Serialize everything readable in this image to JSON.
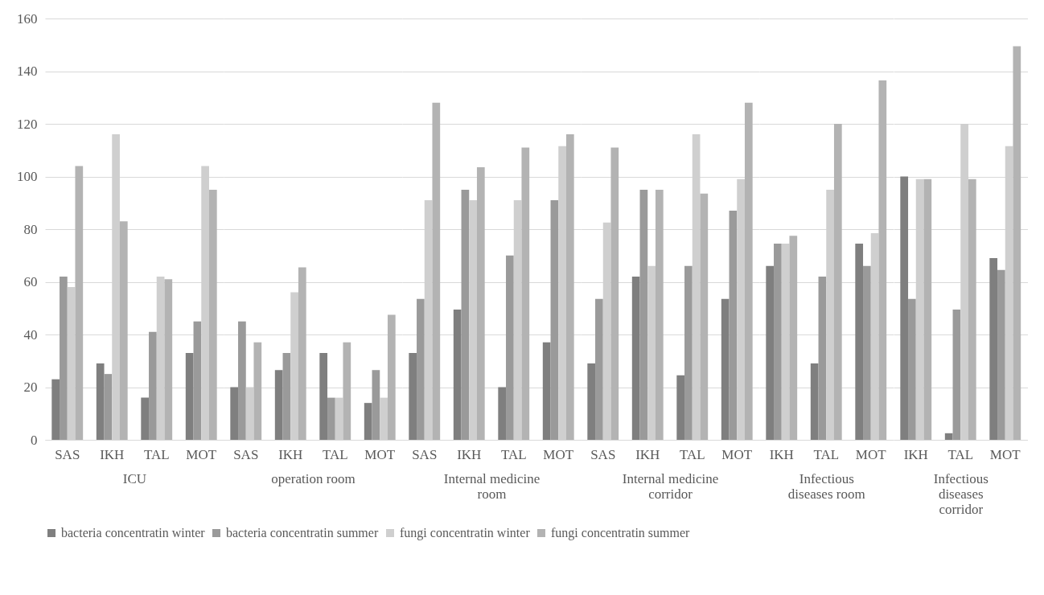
{
  "chart_data": [
    {
      "type": "bar",
      "xlabel": "ICU",
      "categories": [
        "SAS",
        "IKH",
        "TAL",
        "MOT"
      ],
      "ylim": [
        0,
        160
      ],
      "yticks": [
        0,
        20,
        40,
        60,
        80,
        100,
        120,
        140,
        160
      ],
      "grid": "y",
      "legend": "bottom",
      "series": [
        {
          "name": "bacteria concentratin winter",
          "color": "#7f7f7f",
          "values": [
            23,
            29,
            16,
            33
          ]
        },
        {
          "name": "bacteria concentratin summer",
          "color": "#9a9a9a",
          "values": [
            62,
            25,
            41,
            45
          ]
        },
        {
          "name": "fungi concentratin winter",
          "color": "#cfcfcf",
          "values": [
            58,
            116,
            62,
            104
          ]
        },
        {
          "name": "fungi concentratin summer",
          "color": "#b3b3b3",
          "values": [
            104,
            83,
            61,
            95
          ]
        }
      ]
    },
    {
      "type": "bar",
      "xlabel": "operation room",
      "categories": [
        "SAS",
        "IKH",
        "TAL",
        "MOT"
      ],
      "ylim": [
        0,
        160
      ],
      "yticks": [
        0,
        20,
        40,
        60,
        80,
        100,
        120,
        140,
        160
      ],
      "grid": "y",
      "tick_labels": "x",
      "legend": "bottom",
      "series": [
        {
          "name": "bacteria concentratin winter",
          "color": "#7f7f7f",
          "values": [
            20,
            26.5,
            33,
            14
          ]
        },
        {
          "name": "bacteria concentratin summer",
          "color": "#9a9a9a",
          "values": [
            45,
            33,
            16,
            26.5
          ]
        },
        {
          "name": "fungi concentratin winter",
          "color": "#cfcfcf",
          "values": [
            20,
            56,
            16,
            16
          ]
        },
        {
          "name": "fungi concentratin summer",
          "color": "#b3b3b3",
          "values": [
            37,
            65.5,
            37,
            47.5
          ]
        }
      ]
    },
    {
      "type": "bar",
      "xlabel": "Internal medicine room",
      "categories": [
        "SAS",
        "IKH",
        "TAL",
        "MOT"
      ],
      "ylim": [
        0,
        160
      ],
      "yticks": [
        0,
        20,
        40,
        60,
        80,
        100,
        120,
        140,
        160
      ],
      "grid": "y",
      "tick_labels": "x",
      "legend": "bottom",
      "series": [
        {
          "name": "bacteria concentratin winter",
          "color": "#7f7f7f",
          "values": [
            33,
            49.5,
            20,
            37
          ]
        },
        {
          "name": "bacteria concentratin summer",
          "color": "#9a9a9a",
          "values": [
            53.5,
            95,
            70,
            91
          ]
        },
        {
          "name": "fungi concentratin winter",
          "color": "#cfcfcf",
          "values": [
            91,
            91,
            91,
            111.5
          ]
        },
        {
          "name": "fungi concentratin summer",
          "color": "#b3b3b3",
          "values": [
            128,
            103.5,
            111,
            116
          ]
        }
      ]
    },
    {
      "type": "bar",
      "xlabel": "Internal medicine corridor",
      "categories": [
        "SAS",
        "IKH",
        "TAL",
        "MOT"
      ],
      "ylim": [
        0,
        160
      ],
      "yticks": [
        0,
        20,
        40,
        60,
        80,
        100,
        120,
        140,
        160
      ],
      "grid": "y",
      "tick_labels": "x",
      "legend": "bottom",
      "series": [
        {
          "name": "bacteria concentratin winter",
          "color": "#7f7f7f",
          "values": [
            29,
            62,
            24.5,
            53.5
          ]
        },
        {
          "name": "bacteria concentratin summer",
          "color": "#9a9a9a",
          "values": [
            53.5,
            95,
            66,
            87
          ]
        },
        {
          "name": "fungi concentratin winter",
          "color": "#cfcfcf",
          "values": [
            82.5,
            66,
            116,
            99
          ]
        },
        {
          "name": "fungi concentratin summer",
          "color": "#b3b3b3",
          "values": [
            111,
            95,
            93.5,
            128
          ]
        }
      ]
    },
    {
      "type": "bar",
      "xlabel": "Infectious diseases room",
      "categories": [
        "IKH",
        "TAL",
        "MOT"
      ],
      "ylim": [
        0,
        160
      ],
      "yticks": [
        0,
        20,
        40,
        60,
        80,
        100,
        120,
        140,
        160
      ],
      "grid": "y",
      "tick_labels": "x",
      "legend": "bottom",
      "series": [
        {
          "name": "bacteria concentratin winter",
          "color": "#7f7f7f",
          "values": [
            66,
            29,
            74.5
          ]
        },
        {
          "name": "bacteria concentratin summer",
          "color": "#9a9a9a",
          "values": [
            74.5,
            62,
            66
          ]
        },
        {
          "name": "fungi concentratin winter",
          "color": "#cfcfcf",
          "values": [
            74.5,
            95,
            78.5
          ]
        },
        {
          "name": "fungi concentratin summer",
          "color": "#b3b3b3",
          "values": [
            77.5,
            120,
            136.5
          ]
        }
      ]
    },
    {
      "type": "bar",
      "xlabel": "Infectious diseases corridor",
      "categories": [
        "IKH",
        "TAL",
        "MOT"
      ],
      "ylim": [
        0,
        160
      ],
      "yticks": [
        0,
        20,
        40,
        60,
        80,
        100,
        120,
        140,
        160
      ],
      "grid": "y",
      "tick_labels": "x",
      "legend": "bottom",
      "series": [
        {
          "name": "bacteria concentratin winter",
          "color": "#7f7f7f",
          "values": [
            100,
            2.5,
            69
          ]
        },
        {
          "name": "bacteria concentratin summer",
          "color": "#9a9a9a",
          "values": [
            53.5,
            49.5,
            64.5
          ]
        },
        {
          "name": "fungi concentratin winter",
          "color": "#cfcfcf",
          "values": [
            99,
            120,
            111.5
          ]
        },
        {
          "name": "fungi concentratin summer",
          "color": "#b3b3b3",
          "values": [
            99,
            99,
            149.5
          ]
        }
      ]
    }
  ]
}
